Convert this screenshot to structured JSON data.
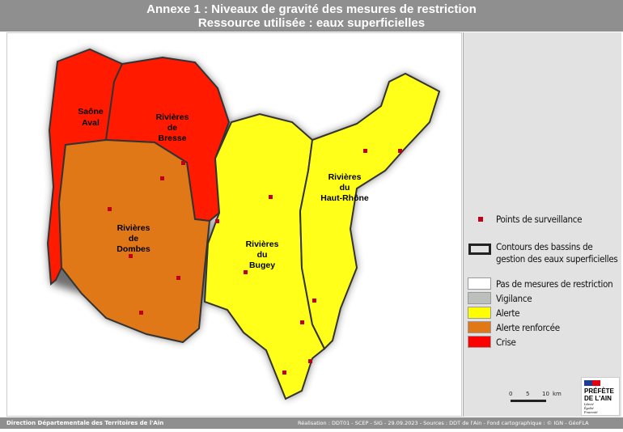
{
  "title": {
    "line1": "Annexe 1 : Niveaux de gravité des mesures de restriction",
    "line2": "Ressource utilisée : eaux superficielles"
  },
  "basins": [
    {
      "name": "Saône Aval",
      "lines": [
        "Saône",
        "Aval"
      ],
      "level": "Crise"
    },
    {
      "name": "Rivières de Bresse",
      "lines": [
        "Rivières",
        "de",
        "Bresse"
      ],
      "level": "Crise"
    },
    {
      "name": "Rivières de Dombes",
      "lines": [
        "Rivières",
        "de",
        "Dombes"
      ],
      "level": "Alerte renforcée"
    },
    {
      "name": "Rivières du Bugey",
      "lines": [
        "Rivières",
        "du",
        "Bugey"
      ],
      "level": "Alerte"
    },
    {
      "name": "Rivières du Haut-Rhône",
      "lines": [
        "Rivières",
        "du",
        "Haut-Rhône"
      ],
      "level": "Alerte"
    }
  ],
  "legend": {
    "points": "Points de surveillance",
    "contours": [
      "Contours des bassins de",
      "gestion des eaux superficielles"
    ],
    "levels": [
      {
        "label": "Pas de mesures de restriction",
        "color": "#ffffff"
      },
      {
        "label": "Vigilance",
        "color": "#bcc0bc"
      },
      {
        "label": "Alerte",
        "color": "#ffff00"
      },
      {
        "label": "Alerte renforcée",
        "color": "#e07818"
      },
      {
        "label": "Crise",
        "color": "#ff0000"
      }
    ]
  },
  "scale": {
    "ticks": [
      "0",
      "5",
      "10"
    ],
    "unit": "km"
  },
  "logo": {
    "line1": "PRÉFÈTE",
    "line2": "DE L'AIN",
    "motto": [
      "Liberté",
      "Égalité",
      "Fraternité"
    ]
  },
  "footer": {
    "left": "Direction Départementale des Territoires de l'Ain",
    "right": "Réalisation : DDT01 - SCEP - SIG - 29.09.2023 -  Sources : DDT de l'Ain -  Fond cartographique : © IGN - GéoFLA"
  }
}
